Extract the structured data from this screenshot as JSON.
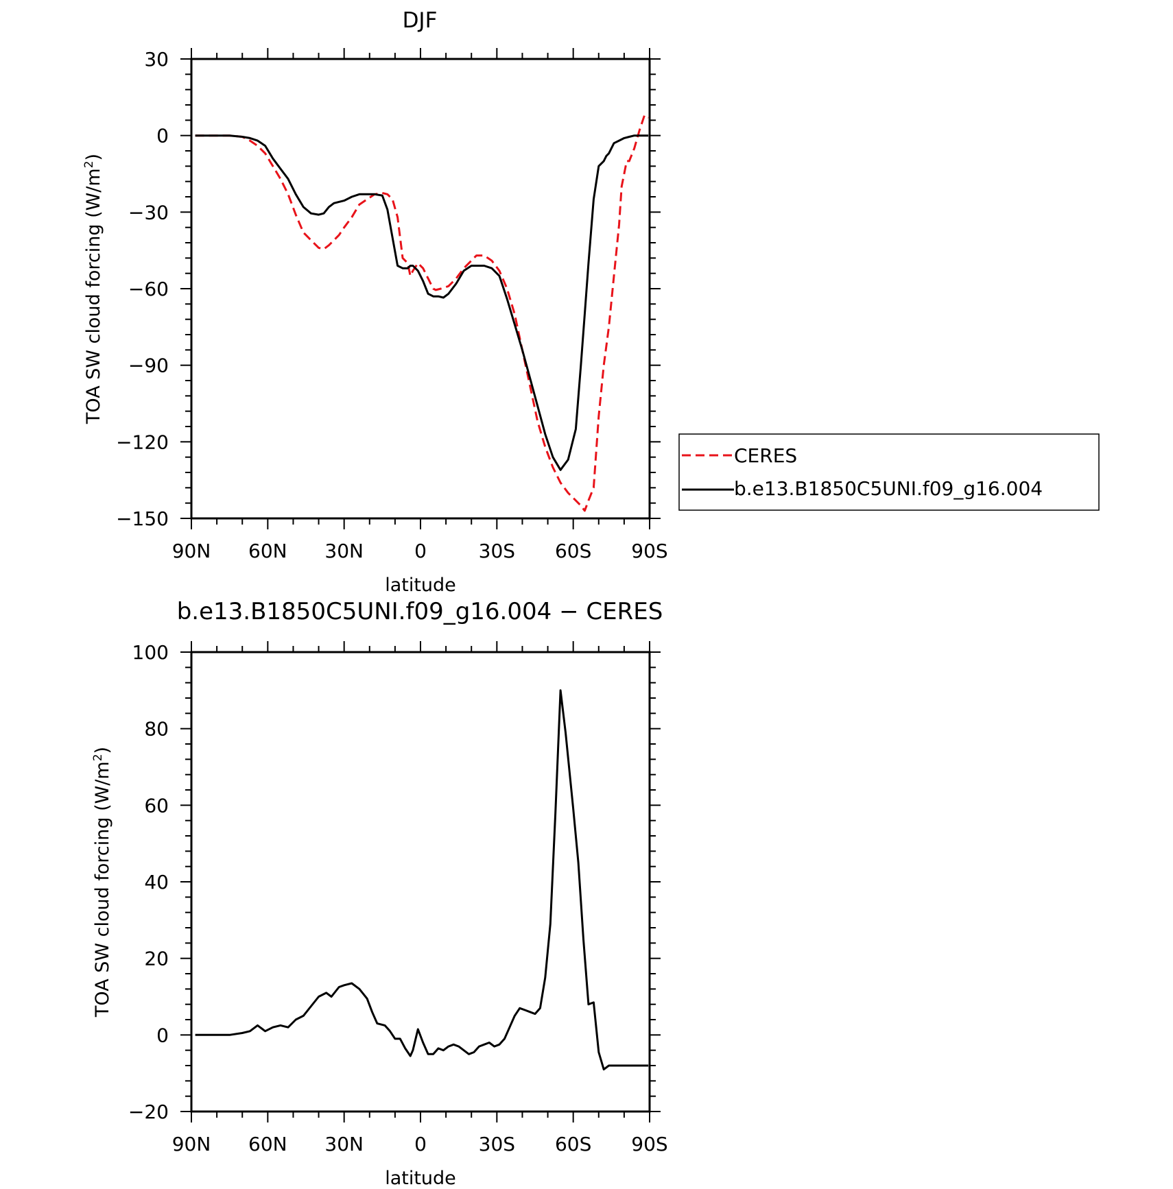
{
  "page": {
    "top_title": "DJF",
    "bottom_title": "b.e13.B1850C5UNI.f09_g16.004 − CERES"
  },
  "legend": {
    "entries": [
      {
        "label": "CERES",
        "color": "#e8131a",
        "style": "dashed"
      },
      {
        "label": "b.e13.B1850C5UNI.f09_g16.004",
        "color": "#000000",
        "style": "solid"
      }
    ]
  },
  "chart_data": [
    {
      "type": "line",
      "title": "DJF",
      "xlabel": "latitude",
      "ylabel_prefix": "TOA SW cloud forcing (W/m",
      "ylabel_sup": "2",
      "ylabel_suffix": ")",
      "xlim": [
        90,
        -90
      ],
      "ylim": [
        -150,
        30
      ],
      "xticks": [
        {
          "value": 90,
          "label": "90N"
        },
        {
          "value": 60,
          "label": "60N"
        },
        {
          "value": 30,
          "label": "30N"
        },
        {
          "value": 0,
          "label": "0"
        },
        {
          "value": -30,
          "label": "30S"
        },
        {
          "value": -60,
          "label": "60S"
        },
        {
          "value": -90,
          "label": "90S"
        }
      ],
      "yticks": [
        {
          "value": 30,
          "label": "30"
        },
        {
          "value": 0,
          "label": "0"
        },
        {
          "value": -30,
          "label": "−30"
        },
        {
          "value": -60,
          "label": "−60"
        },
        {
          "value": -90,
          "label": "−90"
        },
        {
          "value": -120,
          "label": "−120"
        },
        {
          "value": -150,
          "label": "−150"
        }
      ],
      "series": [
        {
          "name": "CERES",
          "color": "#e8131a",
          "dashed": true,
          "x": [
            88.5,
            80,
            75,
            70,
            67,
            64,
            61,
            58,
            55,
            52,
            49,
            46,
            43,
            40,
            38,
            36,
            34,
            32,
            30,
            27,
            24,
            21,
            18,
            15,
            13,
            11,
            9,
            7,
            5,
            4,
            3,
            1,
            -1,
            -3,
            -5,
            -6,
            -8,
            -11,
            -14,
            -17,
            -20,
            -22,
            -25,
            -28,
            -31,
            -34,
            -37,
            -40,
            -43,
            -46,
            -49,
            -52,
            -55,
            -58,
            -61,
            -63,
            -64.5,
            -66,
            -68,
            -70,
            -72,
            -74,
            -76,
            -78,
            -79,
            -81,
            -82,
            -84,
            -86,
            -88,
            -89.5
          ],
          "y": [
            0,
            0,
            0,
            -0.5,
            -2,
            -4,
            -7,
            -12,
            -17,
            -23,
            -31,
            -38,
            -41,
            -44,
            -44.5,
            -43,
            -41,
            -39,
            -36,
            -32,
            -27,
            -25,
            -23,
            -22.5,
            -23,
            -25,
            -32,
            -48,
            -50,
            -55,
            -53,
            -50,
            -52,
            -56,
            -60,
            -60.5,
            -60,
            -59,
            -56,
            -52,
            -49,
            -47,
            -47,
            -49,
            -53,
            -60,
            -70,
            -84,
            -98,
            -112,
            -122,
            -130,
            -136,
            -140,
            -143,
            -145,
            -147,
            -143,
            -138,
            -110,
            -90,
            -75,
            -55,
            -35,
            -20,
            -10,
            -10,
            -5,
            2,
            8,
            7
          ]
        },
        {
          "name": "b.e13.B1850C5UNI.f09_g16.004",
          "color": "#000000",
          "dashed": false,
          "x": [
            88.5,
            80,
            75,
            70,
            67,
            64,
            61,
            58,
            55,
            52,
            49,
            46,
            43,
            40,
            38,
            36,
            34,
            32,
            30,
            27,
            24,
            21,
            18,
            15,
            13,
            11,
            9,
            7,
            5,
            4,
            3,
            1,
            -1,
            -3,
            -5,
            -7,
            -9,
            -11,
            -14,
            -17,
            -20,
            -22,
            -25,
            -28,
            -31,
            -34,
            -37,
            -40,
            -43,
            -46,
            -49,
            -52,
            -55,
            -58,
            -61,
            -63,
            -64.5,
            -66,
            -68,
            -70,
            -72,
            -73,
            -74,
            -76,
            -78,
            -80,
            -82,
            -84,
            -86,
            -88,
            -89.5
          ],
          "y": [
            0,
            0,
            0,
            -0.5,
            -1,
            -2,
            -4,
            -9,
            -13,
            -17,
            -23,
            -28,
            -30.5,
            -31,
            -30.5,
            -28,
            -26.5,
            -26,
            -25.5,
            -24,
            -23,
            -23,
            -23,
            -23.5,
            -29,
            -40,
            -51,
            -52,
            -52,
            -51,
            -51,
            -53,
            -57,
            -62,
            -63,
            -63,
            -63.5,
            -62,
            -58,
            -53,
            -51,
            -51,
            -51,
            -52,
            -55,
            -64,
            -74,
            -84,
            -95,
            -106,
            -117,
            -126,
            -131,
            -127,
            -115,
            -90,
            -70,
            -50,
            -25,
            -12,
            -10,
            -8,
            -7,
            -3,
            -2,
            -1,
            -0.5,
            0,
            0,
            0,
            0
          ]
        }
      ]
    },
    {
      "type": "line",
      "title": "b.e13.B1850C5UNI.f09_g16.004 − CERES",
      "xlabel": "latitude",
      "ylabel_prefix": "TOA SW cloud forcing (W/m",
      "ylabel_sup": "2",
      "ylabel_suffix": ")",
      "xlim": [
        90,
        -90
      ],
      "ylim": [
        -20,
        100
      ],
      "xticks": [
        {
          "value": 90,
          "label": "90N"
        },
        {
          "value": 60,
          "label": "60N"
        },
        {
          "value": 30,
          "label": "30N"
        },
        {
          "value": 0,
          "label": "0"
        },
        {
          "value": -30,
          "label": "30S"
        },
        {
          "value": -60,
          "label": "60S"
        },
        {
          "value": -90,
          "label": "90S"
        }
      ],
      "yticks": [
        {
          "value": 100,
          "label": "100"
        },
        {
          "value": 80,
          "label": "80"
        },
        {
          "value": 60,
          "label": "60"
        },
        {
          "value": 40,
          "label": "40"
        },
        {
          "value": 20,
          "label": "20"
        },
        {
          "value": 0,
          "label": "0"
        },
        {
          "value": -20,
          "label": "−20"
        }
      ],
      "series": [
        {
          "color": "#000000",
          "dashed": false,
          "x": [
            88.5,
            80,
            75,
            70,
            67,
            64,
            61,
            58,
            55,
            52,
            49,
            46,
            43,
            40,
            37,
            35,
            32,
            30,
            27,
            24,
            21,
            19,
            17,
            14,
            12,
            10,
            8,
            6,
            4,
            3,
            1,
            -1,
            -3,
            -5,
            -7,
            -9,
            -11,
            -13,
            -15,
            -17,
            -19,
            -21,
            -23,
            -25,
            -27,
            -29,
            -31,
            -33,
            -35,
            -37,
            -39,
            -41,
            -43,
            -45,
            -47,
            -49,
            -51,
            -53,
            -55,
            -57,
            -60,
            -62,
            -64,
            -66,
            -68,
            -70,
            -72,
            -74,
            -76,
            -78,
            -80,
            -82,
            -84,
            -86,
            -88,
            -89.5
          ],
          "y": [
            0,
            0,
            0,
            0.5,
            1,
            2.5,
            1,
            2,
            2.5,
            2,
            4,
            5,
            7.5,
            10,
            11,
            10,
            12.5,
            13,
            13.5,
            12,
            9.5,
            6,
            3,
            2.5,
            1,
            -1,
            -1,
            -3.5,
            -5.5,
            -4,
            1.5,
            -2,
            -5,
            -5,
            -3.5,
            -4,
            -3,
            -2.5,
            -3,
            -4,
            -5,
            -4.5,
            -3,
            -2.5,
            -2,
            -3,
            -2.5,
            -1,
            2,
            5,
            7,
            6.5,
            6,
            5.5,
            7,
            15,
            29,
            58,
            90,
            79,
            59,
            45,
            25,
            8,
            8.5,
            -4.5,
            -9,
            -8,
            -8,
            -8,
            -8,
            -8,
            -8,
            -8,
            -8,
            -8
          ]
        }
      ]
    }
  ]
}
